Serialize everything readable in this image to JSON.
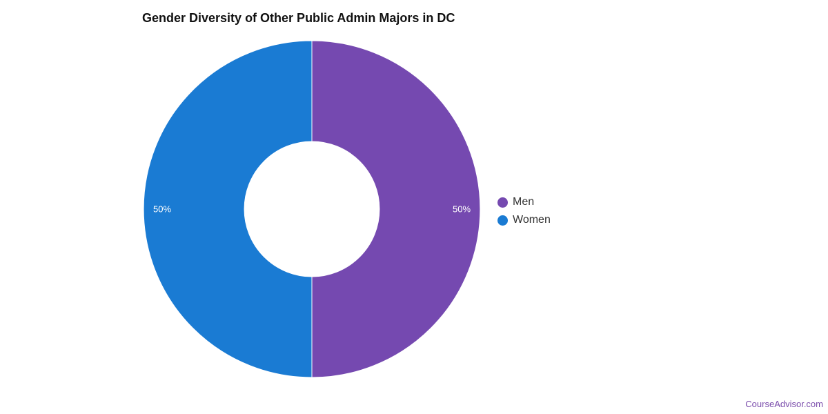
{
  "chart_data": {
    "type": "pie",
    "title": "Gender Diversity of Other Public Admin Majors in DC",
    "donut": true,
    "categories": [
      "Men",
      "Women"
    ],
    "values": [
      50,
      50
    ],
    "data_labels": [
      "50%",
      "50%"
    ],
    "colors": [
      "#7549b0",
      "#1a7bd3"
    ],
    "legend": {
      "placement": "right",
      "entries": [
        "Men",
        "Women"
      ]
    }
  },
  "watermark": "CourseAdvisor.com"
}
